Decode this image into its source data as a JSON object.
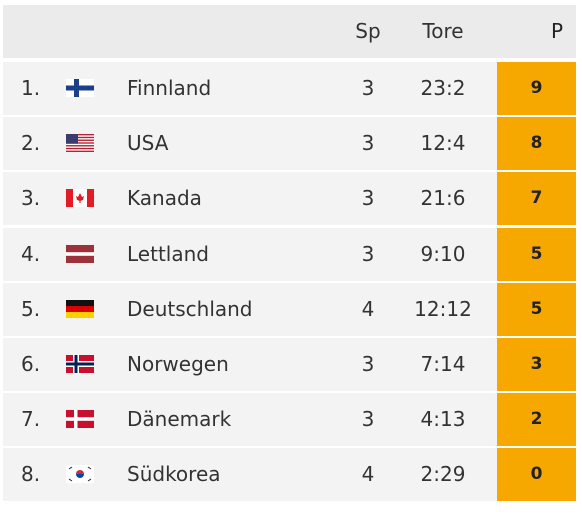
{
  "table": {
    "headers": [
      "Sp",
      "Tore",
      "P"
    ],
    "rows": [
      [
        "1.",
        "Finnland",
        3,
        "23:2",
        9
      ],
      [
        "2.",
        "USA",
        3,
        "12:4",
        8
      ],
      [
        "3.",
        "Kanada",
        3,
        "21:6",
        7
      ],
      [
        "4.",
        "Lettland",
        3,
        "9:10",
        5
      ],
      [
        "5.",
        "Deutschland",
        4,
        "12:12",
        5
      ],
      [
        "6.",
        "Norwegen",
        3,
        "7:14",
        3
      ],
      [
        "7.",
        "Dänemark",
        3,
        "4:13",
        2
      ],
      [
        "8.",
        "Südkorea",
        4,
        "2:29",
        0
      ]
    ]
  }
}
